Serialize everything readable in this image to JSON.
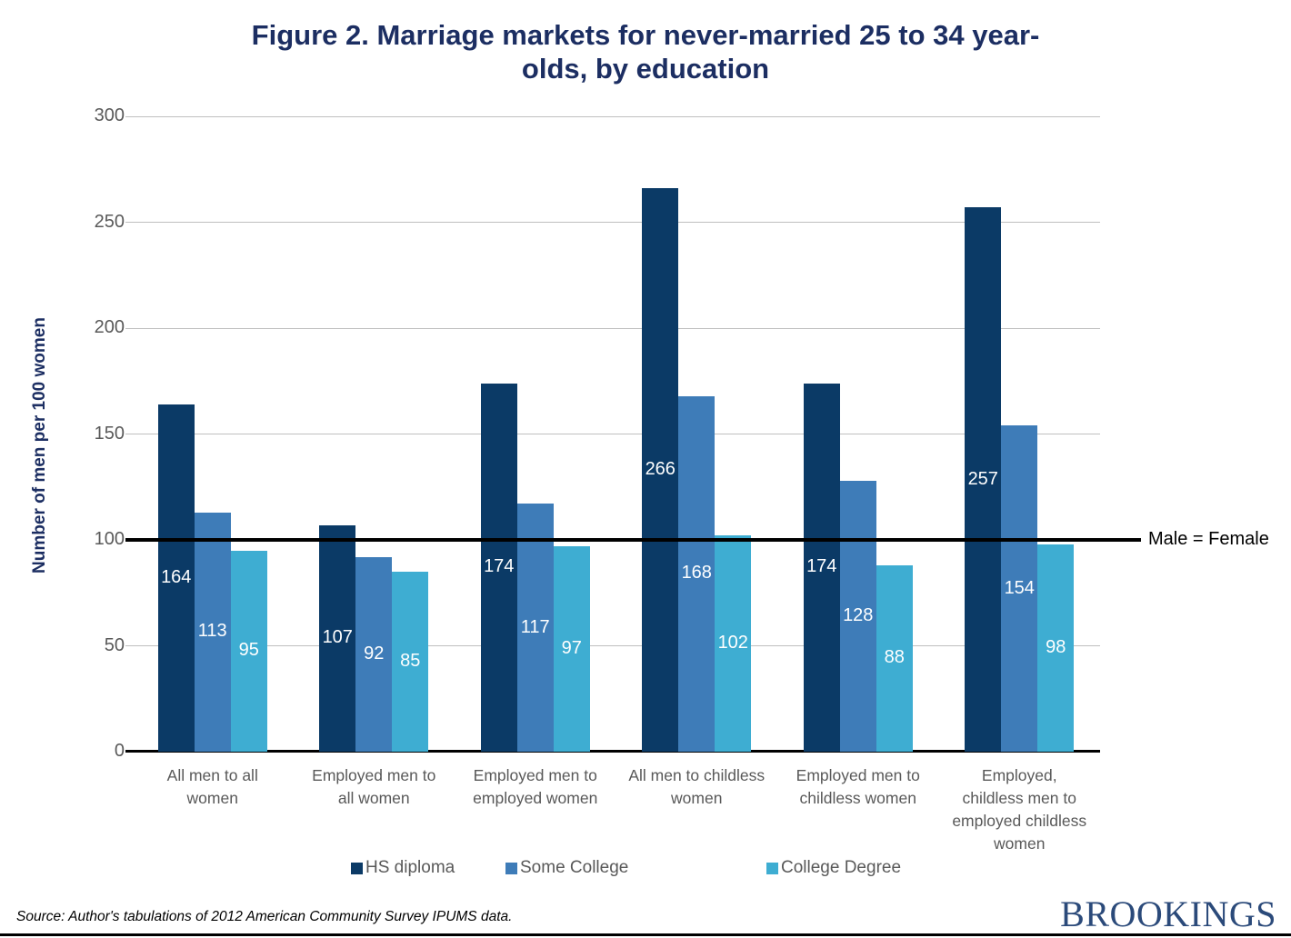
{
  "page": {
    "title_display": "Figure 2. Marriage markets for never-married 25 to 34 year-\nolds, by education",
    "source_note": "Source: Author's tabulations of 2012 American Community Survey IPUMS data.",
    "logo_text": "BROOKINGS"
  },
  "chart_data": {
    "type": "bar",
    "title": "Figure 2. Marriage markets for never-married 25 to 34 year-olds, by education",
    "xlabel": "",
    "ylabel": "Number of men per 100 women",
    "ylim": [
      0,
      300
    ],
    "ytick_interval": 50,
    "ytick_labels": [
      "0",
      "50",
      "100",
      "150",
      "200",
      "250",
      "300"
    ],
    "grid": true,
    "legend_position": "bottom",
    "categories": [
      "All men to all women",
      "Employed men to all women",
      "Employed men to employed women",
      "All men to childless women",
      "Employed men to childless women",
      "Employed, childless men to employed childless women"
    ],
    "category_line_breaks": [
      [
        "All men to all",
        "women"
      ],
      [
        "Employed men to",
        "all women"
      ],
      [
        "Employed men to",
        "employed women"
      ],
      [
        "All men to childless",
        "women"
      ],
      [
        "Employed men to",
        "childless women"
      ],
      [
        "Employed,",
        "childless men to",
        "employed childless",
        "women"
      ]
    ],
    "series": [
      {
        "name": "HS diploma",
        "color": "#0b3a66",
        "values": [
          164,
          107,
          174,
          266,
          174,
          257
        ]
      },
      {
        "name": "Some College",
        "color": "#3e7cb8",
        "values": [
          113,
          92,
          117,
          168,
          128,
          154
        ]
      },
      {
        "name": "College Degree",
        "color": "#3eadd2",
        "values": [
          95,
          85,
          97,
          102,
          88,
          98
        ]
      }
    ],
    "reference_line": {
      "value": 100,
      "label": "Male = Female",
      "color": "#000000"
    }
  },
  "colors": {
    "title_navy": "#1c2e62",
    "axis_text_gray": "#595959",
    "gridline_gray": "#bfbfbf",
    "value_label": "#ffffff",
    "logo_navy": "#2b4a7a"
  }
}
